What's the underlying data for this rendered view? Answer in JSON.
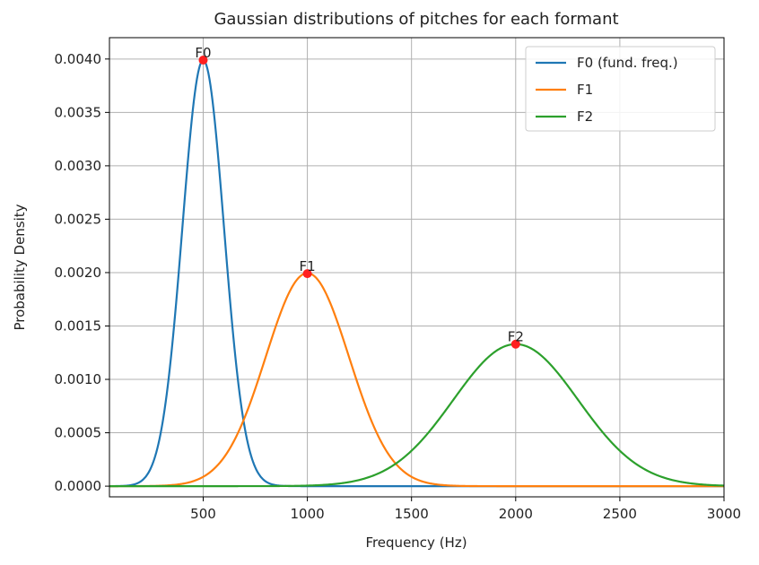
{
  "chart_data": {
    "type": "line",
    "title": "Gaussian distributions of pitches for each formant",
    "xlabel": "Frequency (Hz)",
    "ylabel": "Probability Density",
    "xlim": [
      50,
      3000
    ],
    "ylim": [
      -0.0001,
      0.0042
    ],
    "x_ticks": [
      500,
      1000,
      1500,
      2000,
      2500,
      3000
    ],
    "x_tick_labels": [
      "500",
      "1000",
      "1500",
      "2000",
      "2500",
      "3000"
    ],
    "y_ticks": [
      0,
      0.0005,
      0.001,
      0.0015,
      0.002,
      0.0025,
      0.003,
      0.0035,
      0.004
    ],
    "y_tick_labels": [
      "0.0000",
      "0.0005",
      "0.0010",
      "0.0015",
      "0.0020",
      "0.0025",
      "0.0030",
      "0.0035",
      "0.0040"
    ],
    "grid": true,
    "legend_position": "top-right",
    "series": [
      {
        "name": "F0 (fund. freq.)",
        "mean": 500,
        "std": 100,
        "color": "#1f77b4",
        "peak_label": "F0"
      },
      {
        "name": "F1",
        "mean": 1000,
        "std": 200,
        "color": "#ff7f0e",
        "peak_label": "F1"
      },
      {
        "name": "F2",
        "mean": 2000,
        "std": 300,
        "color": "#2ca02c",
        "peak_label": "F2"
      }
    ],
    "peak_points": [
      {
        "label": "F0",
        "x": 500,
        "y": 0.00399
      },
      {
        "label": "F1",
        "x": 1000,
        "y": 0.00199
      },
      {
        "label": "F2",
        "x": 2000,
        "y": 0.00133
      }
    ],
    "peak_marker_color": "#ff2020"
  }
}
